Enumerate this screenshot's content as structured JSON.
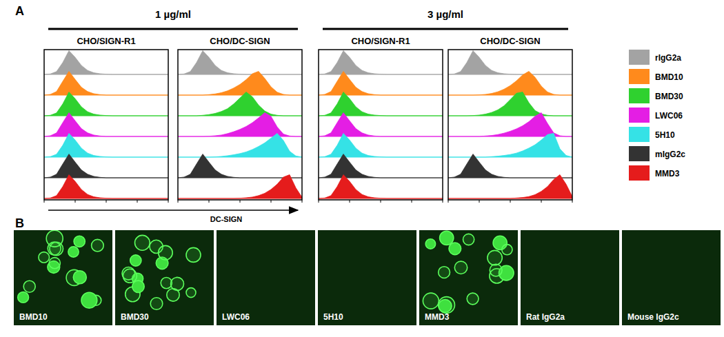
{
  "chart_data": [
    {
      "type": "area",
      "title": "CHO/SIGN-R1",
      "xlim": [
        0,
        1
      ],
      "xticks": [
        0,
        0.25,
        0.5,
        0.75,
        1
      ],
      "ylim": [
        0,
        1
      ],
      "tick_labels": false,
      "x": [
        0,
        0.05,
        0.1,
        0.15,
        0.2,
        0.25,
        0.3,
        0.35,
        0.4,
        0.45,
        0.5,
        0.55,
        0.6,
        0.65,
        0.7,
        0.75,
        0.8,
        0.85,
        0.9,
        0.95,
        1
      ],
      "series": [
        {
          "values": [
            0,
            0.02,
            0.12,
            0.5,
            1,
            0.72,
            0.38,
            0.17,
            0.07,
            0.03,
            0.01,
            0,
            0,
            0,
            0,
            0,
            0,
            0,
            0,
            0,
            0
          ]
        },
        {
          "values": [
            0,
            0.03,
            0.15,
            0.58,
            1,
            0.66,
            0.33,
            0.15,
            0.06,
            0.02,
            0,
            0,
            0,
            0,
            0,
            0,
            0,
            0,
            0,
            0,
            0
          ]
        },
        {
          "values": [
            0,
            0.02,
            0.12,
            0.5,
            1,
            0.72,
            0.38,
            0.17,
            0.07,
            0.03,
            0.01,
            0,
            0,
            0,
            0,
            0,
            0,
            0,
            0,
            0,
            0
          ]
        },
        {
          "values": [
            0,
            0.03,
            0.15,
            0.58,
            1,
            0.66,
            0.33,
            0.15,
            0.06,
            0.02,
            0,
            0,
            0,
            0,
            0,
            0,
            0,
            0,
            0,
            0,
            0
          ]
        },
        {
          "values": [
            0,
            0.02,
            0.12,
            0.5,
            1,
            0.72,
            0.38,
            0.17,
            0.07,
            0.03,
            0.01,
            0,
            0,
            0,
            0,
            0,
            0,
            0,
            0,
            0,
            0
          ]
        },
        {
          "values": [
            0,
            0.03,
            0.15,
            0.58,
            1,
            0.66,
            0.33,
            0.15,
            0.06,
            0.02,
            0,
            0,
            0,
            0,
            0,
            0,
            0,
            0,
            0,
            0,
            0
          ]
        },
        {
          "values": [
            0,
            0.02,
            0.12,
            0.5,
            1,
            0.72,
            0.38,
            0.17,
            0.07,
            0.03,
            0.01,
            0,
            0,
            0,
            0,
            0,
            0,
            0,
            0,
            0,
            0
          ]
        }
      ]
    },
    {
      "type": "area",
      "title": "CHO/DC-SIGN",
      "xlim": [
        0,
        1
      ],
      "xticks": [
        0,
        0.25,
        0.5,
        0.75,
        1
      ],
      "ylim": [
        0,
        1
      ],
      "tick_labels": false,
      "x": [
        0,
        0.05,
        0.1,
        0.15,
        0.2,
        0.25,
        0.3,
        0.35,
        0.4,
        0.45,
        0.5,
        0.55,
        0.6,
        0.65,
        0.7,
        0.75,
        0.8,
        0.85,
        0.9,
        0.95,
        1
      ],
      "series": [
        {
          "values": [
            0,
            0.02,
            0.12,
            0.5,
            1,
            0.72,
            0.38,
            0.17,
            0.07,
            0.03,
            0.01,
            0,
            0,
            0,
            0,
            0,
            0,
            0,
            0,
            0,
            0
          ]
        },
        {
          "values": [
            0,
            0,
            0,
            0,
            0,
            0.02,
            0.05,
            0.1,
            0.18,
            0.3,
            0.45,
            0.65,
            0.9,
            1,
            0.7,
            0.35,
            0.12,
            0.03,
            0,
            0,
            0
          ]
        },
        {
          "values": [
            0,
            0,
            0,
            0,
            0.02,
            0.05,
            0.1,
            0.18,
            0.3,
            0.5,
            0.75,
            1,
            0.8,
            0.45,
            0.2,
            0.07,
            0.02,
            0,
            0,
            0,
            0
          ]
        },
        {
          "values": [
            0,
            0,
            0,
            0,
            0,
            0.01,
            0.03,
            0.06,
            0.12,
            0.2,
            0.3,
            0.42,
            0.58,
            0.78,
            1,
            0.85,
            0.4,
            0.1,
            0.02,
            0,
            0
          ]
        },
        {
          "values": [
            0,
            0,
            0,
            0,
            0,
            0,
            0.01,
            0.03,
            0.06,
            0.1,
            0.15,
            0.22,
            0.32,
            0.45,
            0.6,
            0.8,
            1,
            0.7,
            0.25,
            0.05,
            0
          ]
        },
        {
          "values": [
            0,
            0.03,
            0.15,
            0.58,
            1,
            0.66,
            0.33,
            0.15,
            0.06,
            0.02,
            0,
            0,
            0,
            0,
            0,
            0,
            0,
            0,
            0,
            0,
            0
          ]
        },
        {
          "values": [
            0,
            0,
            0,
            0,
            0,
            0,
            0,
            0,
            0,
            0,
            0.01,
            0.03,
            0.06,
            0.12,
            0.22,
            0.38,
            0.6,
            0.9,
            1,
            0.45,
            0.05
          ]
        }
      ]
    },
    {
      "type": "area",
      "title": "CHO/SIGN-R1",
      "xlim": [
        0,
        1
      ],
      "xticks": [
        0,
        0.25,
        0.5,
        0.75,
        1
      ],
      "ylim": [
        0,
        1
      ],
      "tick_labels": false,
      "x": [
        0,
        0.05,
        0.1,
        0.15,
        0.2,
        0.25,
        0.3,
        0.35,
        0.4,
        0.45,
        0.5,
        0.55,
        0.6,
        0.65,
        0.7,
        0.75,
        0.8,
        0.85,
        0.9,
        0.95,
        1
      ],
      "series": [
        {
          "values": [
            0,
            0.02,
            0.12,
            0.5,
            1,
            0.72,
            0.38,
            0.17,
            0.07,
            0.03,
            0.01,
            0,
            0,
            0,
            0,
            0,
            0,
            0,
            0,
            0,
            0
          ]
        },
        {
          "values": [
            0,
            0.03,
            0.15,
            0.58,
            1,
            0.66,
            0.33,
            0.15,
            0.06,
            0.02,
            0,
            0,
            0,
            0,
            0,
            0,
            0,
            0,
            0,
            0,
            0
          ]
        },
        {
          "values": [
            0,
            0.02,
            0.12,
            0.5,
            1,
            0.72,
            0.38,
            0.17,
            0.07,
            0.03,
            0.01,
            0,
            0,
            0,
            0,
            0,
            0,
            0,
            0,
            0,
            0
          ]
        },
        {
          "values": [
            0,
            0.03,
            0.15,
            0.58,
            1,
            0.66,
            0.33,
            0.15,
            0.06,
            0.02,
            0,
            0,
            0,
            0,
            0,
            0,
            0,
            0,
            0,
            0,
            0
          ]
        },
        {
          "values": [
            0,
            0.02,
            0.12,
            0.5,
            1,
            0.72,
            0.38,
            0.17,
            0.07,
            0.03,
            0.01,
            0,
            0,
            0,
            0,
            0,
            0,
            0,
            0,
            0,
            0
          ]
        },
        {
          "values": [
            0,
            0.03,
            0.15,
            0.58,
            1,
            0.66,
            0.33,
            0.15,
            0.06,
            0.02,
            0,
            0,
            0,
            0,
            0,
            0,
            0,
            0,
            0,
            0,
            0
          ]
        },
        {
          "values": [
            0,
            0.02,
            0.12,
            0.5,
            1,
            0.72,
            0.38,
            0.17,
            0.07,
            0.03,
            0.01,
            0,
            0,
            0,
            0,
            0,
            0,
            0,
            0,
            0,
            0
          ]
        }
      ]
    },
    {
      "type": "area",
      "title": "CHO/DC-SIGN",
      "xlim": [
        0,
        1
      ],
      "xticks": [
        0,
        0.25,
        0.5,
        0.75,
        1
      ],
      "ylim": [
        0,
        1
      ],
      "tick_labels": false,
      "x": [
        0,
        0.05,
        0.1,
        0.15,
        0.2,
        0.25,
        0.3,
        0.35,
        0.4,
        0.45,
        0.5,
        0.55,
        0.6,
        0.65,
        0.7,
        0.75,
        0.8,
        0.85,
        0.9,
        0.95,
        1
      ],
      "series": [
        {
          "values": [
            0,
            0.02,
            0.12,
            0.5,
            1,
            0.72,
            0.38,
            0.17,
            0.07,
            0.03,
            0.01,
            0,
            0,
            0,
            0,
            0,
            0,
            0,
            0,
            0,
            0
          ]
        },
        {
          "values": [
            0,
            0,
            0,
            0,
            0,
            0.01,
            0.03,
            0.07,
            0.14,
            0.25,
            0.4,
            0.6,
            0.85,
            1,
            0.75,
            0.38,
            0.13,
            0.03,
            0,
            0,
            0
          ]
        },
        {
          "values": [
            0,
            0,
            0,
            0,
            0.01,
            0.03,
            0.07,
            0.14,
            0.25,
            0.42,
            0.68,
            0.95,
            1,
            0.55,
            0.22,
            0.08,
            0.02,
            0,
            0,
            0,
            0
          ]
        },
        {
          "values": [
            0,
            0,
            0,
            0,
            0,
            0,
            0.02,
            0.04,
            0.08,
            0.14,
            0.22,
            0.32,
            0.45,
            0.62,
            0.85,
            1,
            0.55,
            0.15,
            0.03,
            0,
            0
          ]
        },
        {
          "values": [
            0,
            0,
            0,
            0,
            0,
            0,
            0,
            0.02,
            0.04,
            0.07,
            0.11,
            0.17,
            0.26,
            0.38,
            0.52,
            0.72,
            0.95,
            1,
            0.35,
            0.07,
            0
          ]
        },
        {
          "values": [
            0,
            0.03,
            0.15,
            0.58,
            1,
            0.66,
            0.33,
            0.15,
            0.06,
            0.02,
            0,
            0,
            0,
            0,
            0,
            0,
            0,
            0,
            0,
            0,
            0
          ]
        },
        {
          "values": [
            0,
            0,
            0,
            0,
            0,
            0,
            0,
            0,
            0,
            0,
            0,
            0.02,
            0.04,
            0.08,
            0.16,
            0.3,
            0.5,
            0.8,
            1,
            0.6,
            0.08
          ]
        }
      ]
    }
  ],
  "figure": {
    "panel_labels": [
      "A",
      "B"
    ],
    "groups": [
      "1 µg/ml",
      "3 µg/ml"
    ],
    "x_label": "DC-SIGN",
    "legend": [
      {
        "name": "rIgG2a",
        "color": "#a3a3a3"
      },
      {
        "name": "BMD10",
        "color": "#ff8a1c"
      },
      {
        "name": "BMD30",
        "color": "#2fd12f"
      },
      {
        "name": "LWC06",
        "color": "#e41ee4"
      },
      {
        "name": "5H10",
        "color": "#35e2e6"
      },
      {
        "name": "mIgG2c",
        "color": "#333333"
      },
      {
        "name": "MMD3",
        "color": "#e51c1c"
      }
    ],
    "images": [
      {
        "label": "BMD10",
        "stained": true
      },
      {
        "label": "BMD30",
        "stained": true
      },
      {
        "label": "LWC06",
        "stained": false
      },
      {
        "label": "5H10",
        "stained": false
      },
      {
        "label": "MMD3",
        "stained": true
      },
      {
        "label": "Rat IgG2a",
        "stained": false
      },
      {
        "label": "Mouse IgG2c",
        "stained": false
      }
    ]
  }
}
